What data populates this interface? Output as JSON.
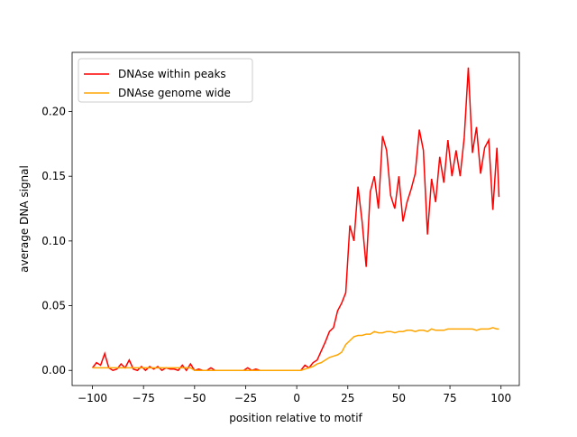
{
  "chart_data": {
    "type": "line",
    "xlabel": "position relative to motif",
    "ylabel": "average DNA signal",
    "x": [
      -100,
      -98,
      -96,
      -94,
      -92,
      -90,
      -88,
      -86,
      -84,
      -82,
      -80,
      -78,
      -76,
      -74,
      -72,
      -70,
      -68,
      -66,
      -64,
      -62,
      -60,
      -58,
      -56,
      -54,
      -52,
      -50,
      -48,
      -46,
      -44,
      -42,
      -40,
      -38,
      -36,
      -34,
      -32,
      -30,
      -28,
      -26,
      -24,
      -22,
      -20,
      -18,
      -16,
      -14,
      -12,
      -10,
      -8,
      -6,
      -4,
      -2,
      0,
      2,
      4,
      6,
      8,
      10,
      12,
      14,
      16,
      18,
      20,
      22,
      24,
      26,
      28,
      30,
      32,
      34,
      36,
      38,
      40,
      42,
      44,
      46,
      48,
      50,
      52,
      54,
      56,
      58,
      60,
      62,
      64,
      66,
      68,
      70,
      72,
      74,
      76,
      78,
      80,
      82,
      84,
      86,
      88,
      90,
      92,
      94,
      96,
      98,
      99
    ],
    "series": [
      {
        "name": "DNAse within peaks",
        "color": "#ff0000",
        "values": [
          0.002,
          0.006,
          0.004,
          0.013,
          0.002,
          0.0,
          0.001,
          0.005,
          0.002,
          0.008,
          0.001,
          0.0,
          0.003,
          0.0,
          0.003,
          0.001,
          0.003,
          0.0,
          0.002,
          0.001,
          0.001,
          0.0,
          0.004,
          0.0,
          0.005,
          0.0,
          0.001,
          0.0,
          0.0,
          0.002,
          0.0,
          0.0,
          0.0,
          0.0,
          0.0,
          0.0,
          0.0,
          0.0,
          0.002,
          0.0,
          0.001,
          0.0,
          0.0,
          0.0,
          0.0,
          0.0,
          0.0,
          0.0,
          0.0,
          0.0,
          0.0,
          0.0,
          0.004,
          0.002,
          0.006,
          0.008,
          0.015,
          0.022,
          0.03,
          0.033,
          0.046,
          0.052,
          0.06,
          0.112,
          0.1,
          0.142,
          0.115,
          0.08,
          0.138,
          0.15,
          0.125,
          0.181,
          0.17,
          0.135,
          0.125,
          0.15,
          0.115,
          0.13,
          0.14,
          0.152,
          0.186,
          0.17,
          0.105,
          0.148,
          0.13,
          0.165,
          0.145,
          0.178,
          0.15,
          0.17,
          0.15,
          0.18,
          0.234,
          0.168,
          0.188,
          0.152,
          0.172,
          0.178,
          0.124,
          0.172,
          0.134
        ]
      },
      {
        "name": "DNAse genome wide",
        "color": "#ffa500",
        "values": [
          0.002,
          0.002,
          0.002,
          0.002,
          0.002,
          0.002,
          0.002,
          0.002,
          0.002,
          0.002,
          0.002,
          0.002,
          0.002,
          0.002,
          0.002,
          0.002,
          0.002,
          0.002,
          0.002,
          0.002,
          0.002,
          0.002,
          0.002,
          0.002,
          0.002,
          0.0,
          0.0,
          0.0,
          0.0,
          0.0,
          0.0,
          0.0,
          0.0,
          0.0,
          0.0,
          0.0,
          0.0,
          0.0,
          0.0,
          0.0,
          0.0,
          0.0,
          0.0,
          0.0,
          0.0,
          0.0,
          0.0,
          0.0,
          0.0,
          0.0,
          0.0,
          0.0,
          0.001,
          0.002,
          0.003,
          0.005,
          0.006,
          0.008,
          0.01,
          0.011,
          0.012,
          0.014,
          0.02,
          0.023,
          0.026,
          0.027,
          0.027,
          0.028,
          0.028,
          0.03,
          0.029,
          0.029,
          0.03,
          0.03,
          0.029,
          0.03,
          0.03,
          0.031,
          0.031,
          0.03,
          0.031,
          0.031,
          0.03,
          0.032,
          0.031,
          0.031,
          0.031,
          0.032,
          0.032,
          0.032,
          0.032,
          0.032,
          0.032,
          0.032,
          0.031,
          0.032,
          0.032,
          0.032,
          0.033,
          0.032,
          0.032
        ]
      }
    ],
    "xlim": [
      -109.95,
      108.95
    ],
    "ylim": [
      -0.0117,
      0.2457
    ],
    "xticks": [
      {
        "value": -100,
        "label": "−100"
      },
      {
        "value": -75,
        "label": "−75"
      },
      {
        "value": -50,
        "label": "−50"
      },
      {
        "value": -25,
        "label": "−25"
      },
      0,
      25,
      50,
      75,
      100
    ],
    "yticks": [
      {
        "value": 0,
        "label": "0.00"
      },
      {
        "value": 0.05,
        "label": "0.05"
      },
      {
        "value": 0.1,
        "label": "0.10"
      },
      {
        "value": 0.15,
        "label": "0.15"
      },
      {
        "value": 0.2,
        "label": "0.20"
      }
    ],
    "legend": "upper left"
  }
}
